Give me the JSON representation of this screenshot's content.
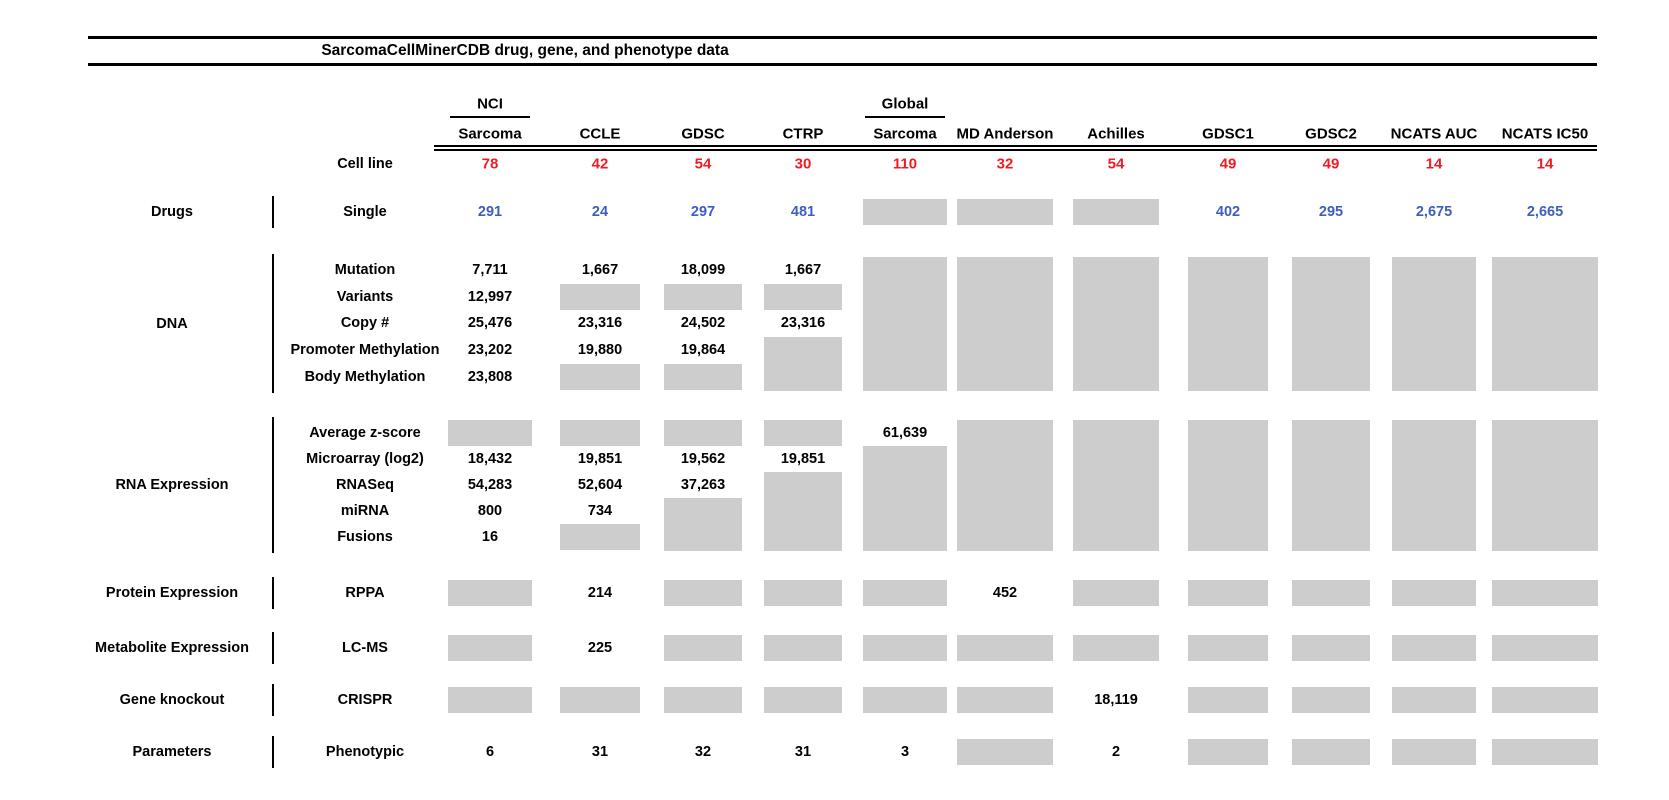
{
  "title": "SarcomaCellMinerCDB drug, gene, and phenotype data",
  "cell_line_row_label": "Cell line",
  "colors": {
    "cell_line_count": "#ed1c24",
    "drug_count": "#3d5ec0",
    "missing_data_box": "#cdcdcd",
    "text": "#000000",
    "background": "#ffffff"
  },
  "chart_data": {
    "type": "table",
    "title": "SarcomaCellMinerCDB drug, gene, and phenotype data",
    "missing_data_encoding": "GRAY = gray box (no data); GRAY:n = gray block spanning n rows; empty string = covered by a spanning block above",
    "columns": [
      {
        "id": "nci-sarcoma",
        "label_lines": [
          "NCI",
          "Sarcoma"
        ],
        "underlined_first_line": true
      },
      {
        "id": "ccle",
        "label_lines": [
          "CCLE"
        ]
      },
      {
        "id": "gdsc",
        "label_lines": [
          "GDSC"
        ]
      },
      {
        "id": "ctrp",
        "label_lines": [
          "CTRP"
        ]
      },
      {
        "id": "global-sarcoma",
        "label_lines": [
          "Global",
          "Sarcoma"
        ],
        "underlined_first_line": true
      },
      {
        "id": "md-anderson",
        "label_lines": [
          "MD Anderson"
        ]
      },
      {
        "id": "achilles",
        "label_lines": [
          "Achilles"
        ]
      },
      {
        "id": "gdsc1",
        "label_lines": [
          "GDSC1"
        ]
      },
      {
        "id": "gdsc2",
        "label_lines": [
          "GDSC2"
        ]
      },
      {
        "id": "ncats-auc",
        "label_lines": [
          "NCATS AUC"
        ]
      },
      {
        "id": "ncats-ic50",
        "label_lines": [
          "NCATS IC50"
        ]
      }
    ],
    "cell_line_counts": [
      "78",
      "42",
      "54",
      "30",
      "110",
      "32",
      "54",
      "49",
      "49",
      "14",
      "14"
    ],
    "sections": [
      {
        "category": "Drugs",
        "rows": [
          {
            "label": "Single",
            "style": "blue",
            "cells": [
              "291",
              "24",
              "297",
              "481",
              "GRAY",
              "GRAY",
              "GRAY",
              "402",
              "295",
              "2,675",
              "2,665"
            ]
          }
        ]
      },
      {
        "category": "DNA",
        "rows": [
          {
            "label": "Mutation",
            "cells": [
              "7,711",
              "1,667",
              "18,099",
              "1,667",
              "GRAY:5",
              "GRAY:5",
              "GRAY:5",
              "GRAY:5",
              "GRAY:5",
              "GRAY:5",
              "GRAY:5"
            ]
          },
          {
            "label": "Variants",
            "cells": [
              "12,997",
              "GRAY",
              "GRAY",
              "GRAY",
              "",
              "",
              "",
              "",
              "",
              "",
              ""
            ]
          },
          {
            "label": "Copy #",
            "cells": [
              "25,476",
              "23,316",
              "24,502",
              "23,316",
              "",
              "",
              "",
              "",
              "",
              "",
              ""
            ]
          },
          {
            "label": "Promoter Methylation",
            "cells": [
              "23,202",
              "19,880",
              "19,864",
              "GRAY:2",
              "",
              "",
              "",
              "",
              "",
              "",
              ""
            ]
          },
          {
            "label": "Body Methylation",
            "cells": [
              "23,808",
              "GRAY",
              "GRAY",
              "",
              "",
              "",
              "",
              "",
              "",
              "",
              ""
            ]
          }
        ]
      },
      {
        "category": "RNA Expression",
        "rows": [
          {
            "label": "Average z-score",
            "cells": [
              "GRAY",
              "GRAY",
              "GRAY",
              "GRAY",
              "61,639",
              "GRAY:5",
              "GRAY:5",
              "GRAY:5",
              "GRAY:5",
              "GRAY:5",
              "GRAY:5"
            ]
          },
          {
            "label": "Microarray (log2)",
            "cells": [
              "18,432",
              "19,851",
              "19,562",
              "19,851",
              "GRAY:4",
              "",
              "",
              "",
              "",
              "",
              ""
            ]
          },
          {
            "label": "RNASeq",
            "cells": [
              "54,283",
              "52,604",
              "37,263",
              "GRAY:3",
              "",
              "",
              "",
              "",
              "",
              "",
              ""
            ]
          },
          {
            "label": "miRNA",
            "cells": [
              "800",
              "734",
              "GRAY:2",
              "",
              "",
              "",
              "",
              "",
              "",
              "",
              ""
            ]
          },
          {
            "label": "Fusions",
            "cells": [
              "16",
              "GRAY",
              "",
              "",
              "",
              "",
              "",
              "",
              "",
              "",
              ""
            ]
          }
        ]
      },
      {
        "category": "Protein Expression",
        "rows": [
          {
            "label": "RPPA",
            "cells": [
              "GRAY",
              "214",
              "GRAY",
              "GRAY",
              "GRAY",
              "452",
              "GRAY",
              "GRAY",
              "GRAY",
              "GRAY",
              "GRAY"
            ]
          }
        ]
      },
      {
        "category": "Metabolite Expression",
        "rows": [
          {
            "label": "LC-MS",
            "cells": [
              "GRAY",
              "225",
              "GRAY",
              "GRAY",
              "GRAY",
              "GRAY",
              "GRAY",
              "GRAY",
              "GRAY",
              "GRAY",
              "GRAY"
            ]
          }
        ]
      },
      {
        "category": "Gene knockout",
        "rows": [
          {
            "label": "CRISPR",
            "cells": [
              "GRAY",
              "GRAY",
              "GRAY",
              "GRAY",
              "GRAY",
              "GRAY",
              "18,119",
              "GRAY",
              "GRAY",
              "GRAY",
              "GRAY"
            ]
          }
        ]
      },
      {
        "category": "Parameters",
        "rows": [
          {
            "label": "Phenotypic",
            "cells": [
              "6",
              "31",
              "32",
              "31",
              "3",
              "GRAY",
              "2",
              "GRAY",
              "GRAY",
              "GRAY",
              "GRAY"
            ]
          }
        ]
      }
    ]
  }
}
